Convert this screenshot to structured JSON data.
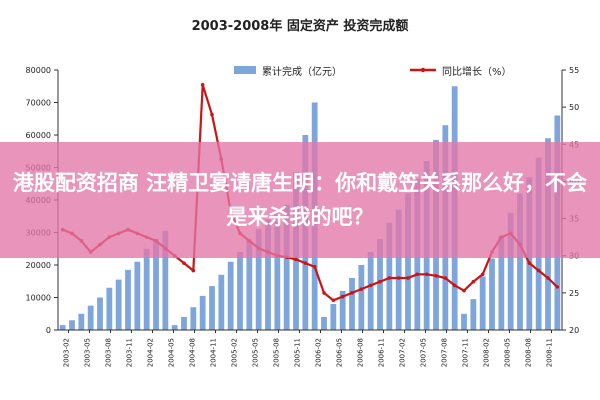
{
  "chart_data": {
    "type": "bar",
    "title": "2003-2008年 固定资产 投资完成额",
    "legend_placement": "top",
    "legend_bar_label": "累计完成（亿元）",
    "legend_line_label": "同比增长（%）",
    "y_left_ticks": [
      "0",
      "10000",
      "20000",
      "30000",
      "40000",
      "50000",
      "60000",
      "70000",
      "80000"
    ],
    "y_right_ticks": [
      "20",
      "25",
      "30",
      "35",
      "40",
      "45",
      "50",
      "55"
    ],
    "ylim_left": [
      0,
      80000
    ],
    "ylim_right": [
      20,
      55
    ],
    "grid": false,
    "colors": {
      "bars": "#7ea6dc",
      "line": "#cc1414"
    },
    "x_tick_labels": [
      "2003-02",
      "2003-05",
      "2003-08",
      "2003-11",
      "2004-02",
      "2004-05",
      "2004-08",
      "2004-11",
      "2005-02",
      "2005-05",
      "2005-08",
      "2005-11",
      "2006-02",
      "2006-05",
      "2006-08",
      "2006-11",
      "2007-02",
      "2007-05",
      "2007-08",
      "2007-11",
      "2008-02",
      "2008-05",
      "2008-08",
      "2008-11"
    ],
    "series": [
      {
        "name": "累计完成（亿元）",
        "axis": "left",
        "kind": "bar",
        "values": [
          1500,
          3000,
          5000,
          7500,
          10000,
          13000,
          15500,
          18500,
          21000,
          25000,
          28000,
          30500,
          1500,
          4000,
          7000,
          10500,
          13500,
          17000,
          21000,
          24000,
          27500,
          31000,
          34000,
          36000,
          38500,
          48500,
          60000,
          70000,
          4000,
          8000,
          12000,
          16000,
          20000,
          24000,
          28000,
          33000,
          37000,
          42000,
          46500,
          52000,
          58500,
          63000,
          75000,
          5000,
          9500,
          16500,
          22000,
          29000,
          36000,
          42000,
          47000,
          53000,
          59000,
          66000
        ]
      },
      {
        "name": "同比增长（%）",
        "axis": "right",
        "kind": "line",
        "values": [
          33.5,
          33,
          32,
          30.5,
          31.5,
          32.5,
          33,
          33.5,
          33,
          32.5,
          32,
          31,
          30,
          29,
          28,
          53,
          49,
          43,
          36,
          33,
          32,
          31,
          30.5,
          30,
          29.8,
          29.5,
          29,
          28.5,
          25,
          24,
          24.5,
          25,
          25.5,
          26,
          26.5,
          27,
          27,
          27,
          27.5,
          27.5,
          27.3,
          27,
          26,
          25.3,
          26.5,
          27.5,
          30.5,
          32.5,
          33,
          31.5,
          29,
          28,
          27,
          25.8
        ]
      }
    ]
  },
  "banner": {
    "headline": "港股配资招商 汪精卫宴请唐生明：你和戴笠关系那么好，不会是来杀我的吧？"
  }
}
